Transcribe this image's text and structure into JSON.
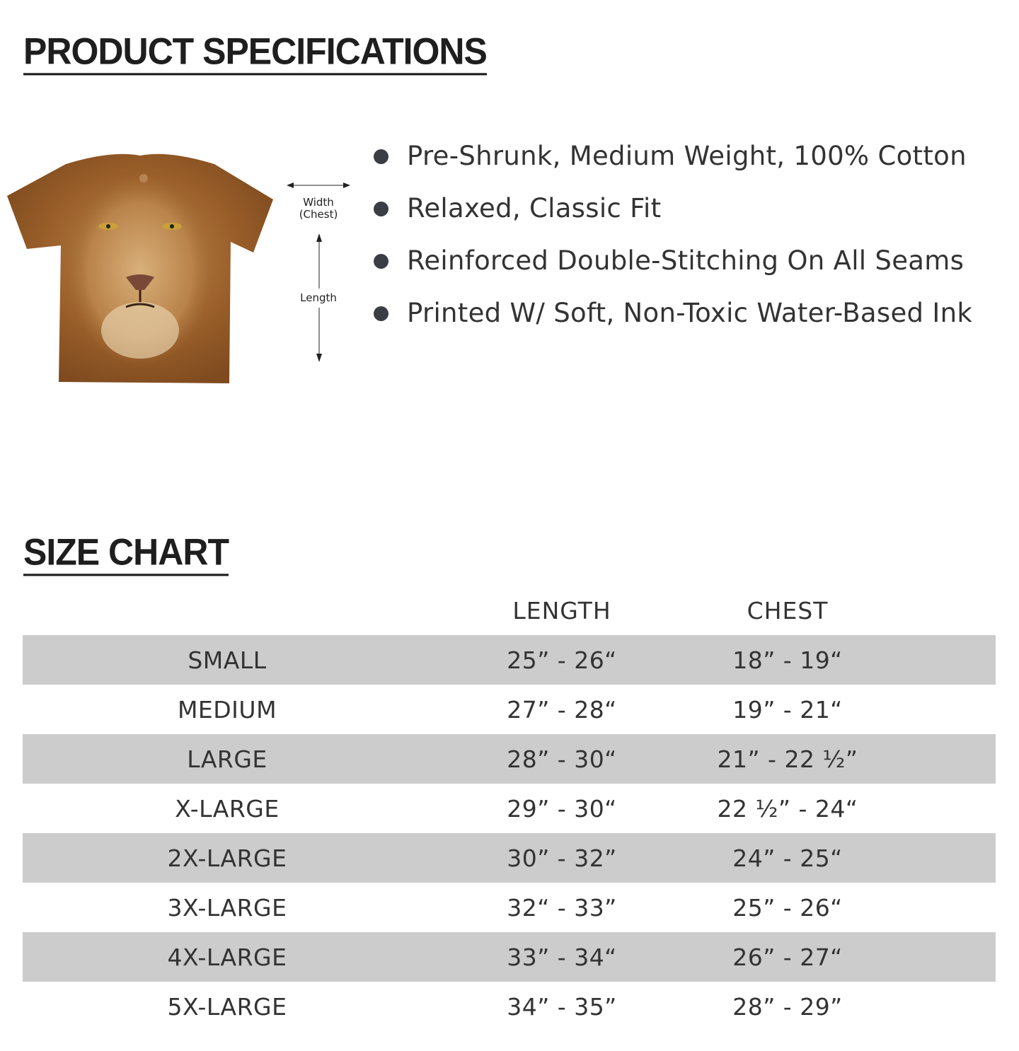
{
  "specs": {
    "title": "PRODUCT SPECIFICATIONS",
    "features": [
      "Pre-Shrunk, Medium Weight, 100% Cotton",
      "Relaxed, Classic Fit",
      "Reinforced Double-Stitching On All Seams",
      "Printed W/ Soft, Non-Toxic Water-Based Ink"
    ],
    "diagram": {
      "width_label": "Width",
      "chest_label": "(Chest)",
      "length_label": "Length"
    },
    "shirt_color": "#9a5f2a"
  },
  "size_chart": {
    "title": "SIZE CHART",
    "headers": [
      "",
      "LENGTH",
      "CHEST"
    ],
    "rows": [
      [
        "SMALL",
        "25” - 26“",
        "18” - 19“"
      ],
      [
        "MEDIUM",
        "27” - 28“",
        "19” - 21“"
      ],
      [
        "LARGE",
        "28” - 30“",
        "21” - 22 ½”"
      ],
      [
        "X-LARGE",
        "29” - 30“",
        "22 ½” - 24“"
      ],
      [
        "2X-LARGE",
        "30” - 32”",
        "24” - 25“"
      ],
      [
        "3X-LARGE",
        "32“ - 33”",
        "25” - 26“"
      ],
      [
        "4X-LARGE",
        "33” - 34“",
        "26” - 27“"
      ],
      [
        "5X-LARGE",
        "34” - 35”",
        "28” - 29”"
      ]
    ],
    "stripe_color": "#cccccc"
  }
}
